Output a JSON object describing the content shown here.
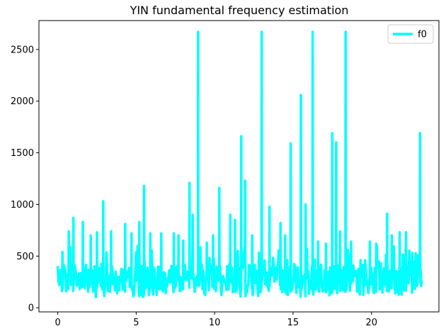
{
  "chart_data": {
    "type": "line",
    "title": "YIN fundamental frequency estimation",
    "xlabel": "",
    "ylabel": "",
    "xlim": [
      -1.2,
      24.3
    ],
    "ylim": [
      -40,
      2780
    ],
    "x_ticks": [
      0,
      5,
      10,
      15,
      20
    ],
    "y_ticks": [
      0,
      500,
      1000,
      1500,
      2000,
      2500
    ],
    "grid": false,
    "legend_position": "top-right",
    "colors": {
      "series": "#00ffff",
      "axes": "#000000",
      "background": "#ffffff"
    },
    "series": [
      {
        "name": "f0",
        "x_range": [
          0,
          23.2
        ],
        "baseline_range": [
          150,
          420
        ],
        "peaks": [
          {
            "x": 0.3,
            "y": 540
          },
          {
            "x": 0.7,
            "y": 740
          },
          {
            "x": 1.0,
            "y": 870
          },
          {
            "x": 1.6,
            "y": 830
          },
          {
            "x": 2.1,
            "y": 700
          },
          {
            "x": 2.5,
            "y": 730
          },
          {
            "x": 2.9,
            "y": 1030
          },
          {
            "x": 3.4,
            "y": 740
          },
          {
            "x": 4.3,
            "y": 810
          },
          {
            "x": 4.7,
            "y": 720
          },
          {
            "x": 5.2,
            "y": 830
          },
          {
            "x": 5.5,
            "y": 1180
          },
          {
            "x": 5.9,
            "y": 720
          },
          {
            "x": 6.6,
            "y": 720
          },
          {
            "x": 7.4,
            "y": 720
          },
          {
            "x": 7.7,
            "y": 700
          },
          {
            "x": 8.0,
            "y": 650
          },
          {
            "x": 8.4,
            "y": 1210
          },
          {
            "x": 8.6,
            "y": 900
          },
          {
            "x": 8.95,
            "y": 2670
          },
          {
            "x": 9.5,
            "y": 630
          },
          {
            "x": 9.9,
            "y": 700
          },
          {
            "x": 10.3,
            "y": 1160
          },
          {
            "x": 11.0,
            "y": 900
          },
          {
            "x": 11.3,
            "y": 850
          },
          {
            "x": 11.7,
            "y": 1660
          },
          {
            "x": 11.95,
            "y": 1230
          },
          {
            "x": 12.4,
            "y": 700
          },
          {
            "x": 13.0,
            "y": 2670
          },
          {
            "x": 13.5,
            "y": 980
          },
          {
            "x": 14.2,
            "y": 820
          },
          {
            "x": 14.5,
            "y": 700
          },
          {
            "x": 14.85,
            "y": 1590
          },
          {
            "x": 15.5,
            "y": 2060
          },
          {
            "x": 15.8,
            "y": 1000
          },
          {
            "x": 16.25,
            "y": 2670
          },
          {
            "x": 16.6,
            "y": 640
          },
          {
            "x": 17.1,
            "y": 620
          },
          {
            "x": 17.5,
            "y": 1690
          },
          {
            "x": 17.75,
            "y": 1600
          },
          {
            "x": 18.0,
            "y": 740
          },
          {
            "x": 18.35,
            "y": 2670
          },
          {
            "x": 18.7,
            "y": 640
          },
          {
            "x": 19.6,
            "y": 460
          },
          {
            "x": 19.9,
            "y": 640
          },
          {
            "x": 20.3,
            "y": 620
          },
          {
            "x": 20.6,
            "y": 430
          },
          {
            "x": 21.0,
            "y": 910
          },
          {
            "x": 21.3,
            "y": 700
          },
          {
            "x": 21.8,
            "y": 730
          },
          {
            "x": 22.2,
            "y": 730
          },
          {
            "x": 22.6,
            "y": 530
          },
          {
            "x": 22.9,
            "y": 460
          },
          {
            "x": 23.1,
            "y": 1690
          }
        ]
      }
    ]
  }
}
